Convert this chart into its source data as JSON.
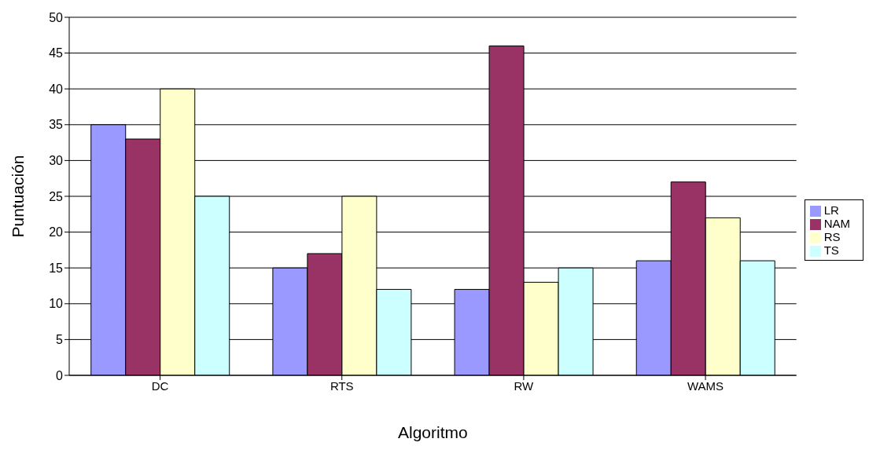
{
  "chart_data": {
    "type": "bar",
    "xlabel": "Algoritmo",
    "ylabel": "Puntuación",
    "categories": [
      "DC",
      "RTS",
      "RW",
      "WAMS"
    ],
    "series": [
      {
        "name": "LR",
        "color": "#9999ff",
        "values": [
          35,
          15,
          12,
          16
        ]
      },
      {
        "name": "NAM",
        "color": "#993366",
        "values": [
          33,
          17,
          46,
          27
        ]
      },
      {
        "name": "RS",
        "color": "#ffffcc",
        "values": [
          40,
          25,
          13,
          22
        ]
      },
      {
        "name": "TS",
        "color": "#ccffff",
        "values": [
          25,
          12,
          15,
          16
        ]
      }
    ],
    "ylim": [
      0,
      50
    ],
    "yticks": [
      0,
      5,
      10,
      15,
      20,
      25,
      30,
      35,
      40,
      45,
      50
    ],
    "grid": "y",
    "legend": "right"
  }
}
